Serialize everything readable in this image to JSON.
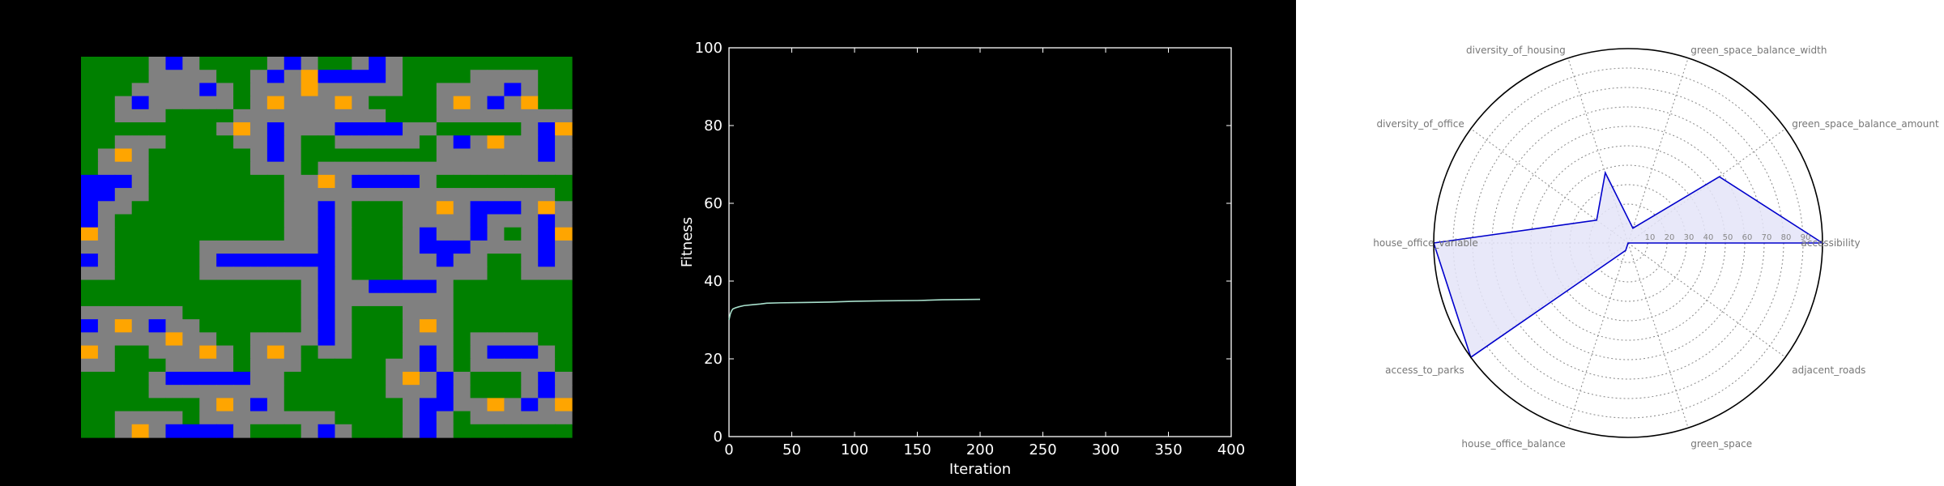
{
  "chart_data": [
    {
      "type": "heatmap",
      "palette": {
        "green": "#008000",
        "gray": "#808080",
        "blue": "#0000ff",
        "orange": "#ffa500"
      },
      "legend": {
        "G": "green",
        "R": "gray",
        "B": "blue",
        "O": "orange"
      },
      "rows": [
        "GGGGRBRGGGGRBRGGRBRGGGGGGGGGG",
        "GGGGRRRRGGRBROBBBBRGGGGRRRRGG",
        "GGGRRRRBRGRRRORRRRRGGRRRRBRGG",
        "GGRBRRRRRGRORRRORGGGGRORBROGG",
        "GGRRRGGGGRRRRRRRRRGGGRRRRRRRR",
        "GGGGGGGGRORBRRRBBBBRRGGGGGRBO",
        "GGRRRGGGGRRBRGGRRRRRGRBRORRBR",
        "GRORGGGGGGRBRGGGGGGGGRRRRRRBR",
        "GRRRGGGGGGRRRGRRRRRRRRRRRRRRR",
        "BBBRGGGGGGGGRRORBBBBRGGGGGGGG",
        "BBRRGGGGGGGGRRRRRRRRRRRRRRRRG",
        "BRRGGGGGGGGGRRBRGGGRRORBBBROR",
        "BRGGGGGGGGGGRRBRGGGRRRRBRRRBR",
        "ORGGGGGGGGGGRRBRGGGRBRRBRGRBO",
        "RRGGGGGRRRRRRRBRGGGRBBBRRRRBR",
        "BRGGGGGRBBBBBBBRGGGRRBRRGGRBR",
        "RRGGGGGRRRRRRRBRGGGRRRRRGGRRR",
        "GGGGGGGGGGGGGRBRRBBBBRGGGGGGG",
        "GGGGGGGGGGGGGRBRRRRRRRGGGGGGG",
        "RRRRRRGGGGGGGRBRGGGRRRGGGGGGG",
        "BRORBRRGGGGGGRBRGGGRORGGGGGGG",
        "RRRRRORRGGRRRRBRGGGRRRGRRRRGG",
        "ORGGRRRORGRORGRRGGGRBRGRBBBRG",
        "RRGGGRRRRGRRRGGGGGRRBRGRRRRRG",
        "GGGGRBBBBBRRGGGGGGRORBRGGGRBR",
        "GGGGRRRRRRRRGGGGGGRRRBRGGGRBR",
        "GGGGGGGRORBRGGGGGGGRBBRRORBRO",
        "GGRRRRGRRRRRRRRGGGGRBRGRRRRRR",
        "GGRORBBBBRGGGRBRGGGRBRGGGGGGG"
      ]
    },
    {
      "type": "line",
      "xlabel": "Iteration",
      "ylabel": "Fitness",
      "xlim": [
        0,
        400
      ],
      "ylim": [
        0,
        100
      ],
      "xticks": [
        0,
        50,
        100,
        150,
        200,
        250,
        300,
        350,
        400
      ],
      "yticks": [
        0,
        20,
        40,
        60,
        80,
        100
      ],
      "series": [
        {
          "color": "#a8e0cc",
          "x": [
            0,
            1,
            2,
            3,
            5,
            8,
            12,
            18,
            25,
            30,
            40,
            60,
            80,
            100,
            120,
            150,
            170,
            200
          ],
          "y": [
            30.0,
            31.5,
            32.3,
            32.8,
            33.1,
            33.4,
            33.7,
            33.9,
            34.1,
            34.3,
            34.4,
            34.5,
            34.6,
            34.8,
            34.9,
            35.0,
            35.2,
            35.3
          ]
        }
      ]
    },
    {
      "type": "radar",
      "categories": [
        "accessibility",
        "green_space_balance_amount",
        "green_space_balance_width",
        "diversity_of_housing",
        "diversity_of_office",
        "house_office_variable",
        "access_to_parks",
        "house_office_balance",
        "green_space",
        "adjacent_roads"
      ],
      "values": [
        100,
        58,
        8,
        38,
        20,
        100,
        100,
        4,
        0,
        0
      ],
      "rlim": [
        0,
        100
      ],
      "rticks": [
        10,
        20,
        30,
        40,
        50,
        60,
        70,
        80,
        90
      ],
      "line_color": "#0000cc",
      "fill_color": "#e4e4f8"
    }
  ]
}
